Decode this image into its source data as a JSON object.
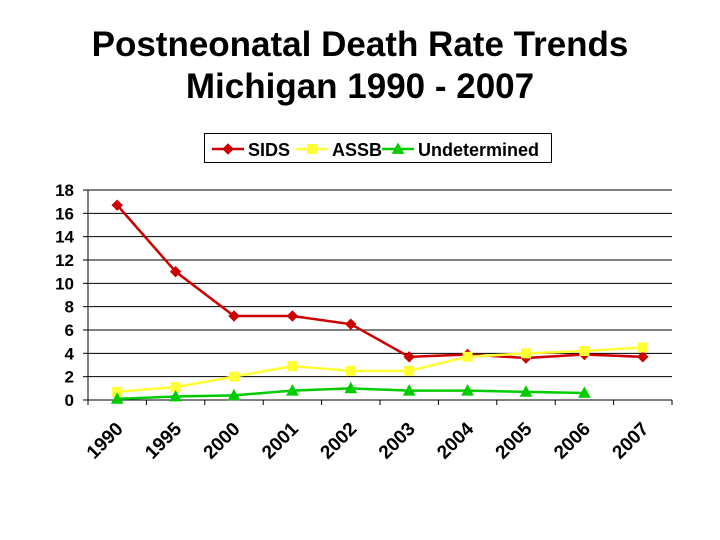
{
  "title": {
    "line1": "Postneonatal Death Rate Trends",
    "line2": "Michigan 1990 - 2007"
  },
  "chart_data": {
    "type": "line",
    "categories": [
      "1990",
      "1995",
      "2000",
      "2001",
      "2002",
      "2003",
      "2004",
      "2005",
      "2006",
      "2007"
    ],
    "series": [
      {
        "name": "SIDS",
        "color": "#cc0000",
        "marker": "diamond",
        "values": [
          16.7,
          11.0,
          7.2,
          7.2,
          6.5,
          3.7,
          3.9,
          3.6,
          3.9,
          3.7
        ]
      },
      {
        "name": "ASSB",
        "color": "#ffff33",
        "marker": "square",
        "values": [
          0.7,
          1.1,
          2.0,
          2.9,
          2.5,
          2.5,
          3.7,
          4.0,
          4.2,
          4.5
        ]
      },
      {
        "name": "Undetermined",
        "color": "#00cc00",
        "marker": "triangle",
        "values": [
          0.1,
          0.3,
          0.4,
          0.8,
          1.0,
          0.8,
          0.8,
          0.7,
          0.6,
          null
        ]
      }
    ],
    "ylim": [
      0,
      18
    ],
    "yticks": [
      0,
      2,
      4,
      6,
      8,
      10,
      12,
      14,
      16,
      18
    ],
    "grid": "horizontal",
    "legend_position": "top",
    "xlabel": "",
    "ylabel": ""
  }
}
